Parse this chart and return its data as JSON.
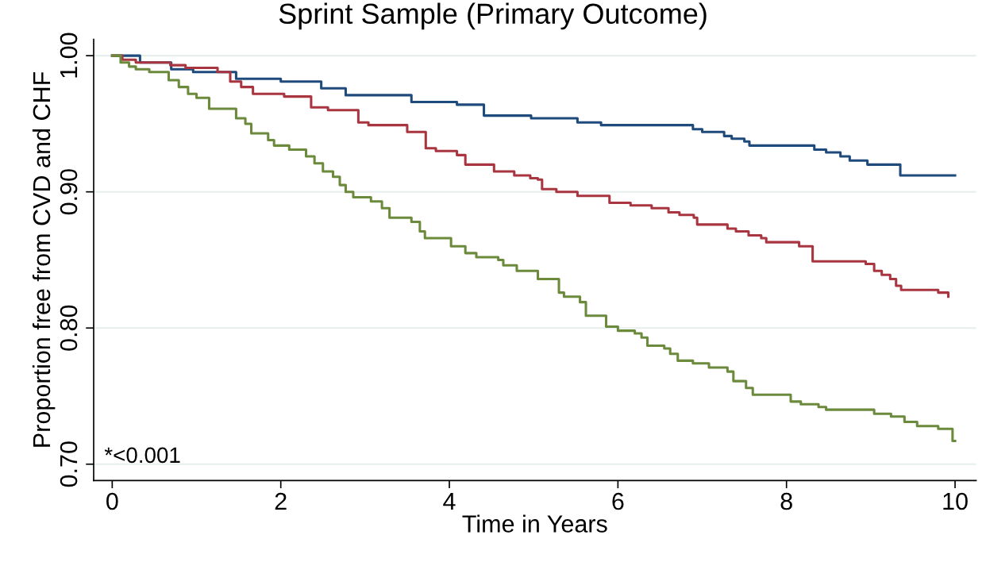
{
  "chart_data": {
    "type": "step",
    "title": "Sprint Sample (Primary Outcome)",
    "xlabel": "Time in Years",
    "ylabel": "Proportion free from CVD and CHF",
    "annotations": [
      "*<0.001"
    ],
    "series": [
      {
        "color": "#1f4a7c",
        "x": [
          0,
          0.33,
          0.7,
          0.96,
          1.47,
          2.0,
          2.48,
          2.77,
          3.55,
          4.09,
          4.41,
          4.97,
          5.52,
          5.8,
          6.89,
          7.0,
          7.26,
          7.35,
          7.5,
          7.56,
          8.33,
          8.47,
          8.64,
          8.75,
          8.96,
          9.35,
          10.0
        ],
        "values": [
          1.0,
          0.995,
          0.99,
          0.988,
          0.983,
          0.981,
          0.976,
          0.971,
          0.966,
          0.964,
          0.956,
          0.954,
          0.951,
          0.949,
          0.946,
          0.944,
          0.941,
          0.939,
          0.937,
          0.934,
          0.931,
          0.929,
          0.926,
          0.923,
          0.92,
          0.912,
          0.912
        ]
      },
      {
        "color": "#a8353f",
        "x": [
          0,
          0.12,
          0.28,
          0.69,
          0.87,
          1.25,
          1.4,
          1.53,
          1.67,
          2.04,
          2.36,
          2.56,
          2.92,
          3.04,
          3.5,
          3.72,
          3.84,
          4.09,
          4.19,
          4.53,
          4.77,
          4.96,
          5.05,
          5.1,
          5.27,
          5.52,
          5.9,
          6.15,
          6.4,
          6.6,
          6.73,
          6.9,
          6.94,
          7.3,
          7.4,
          7.55,
          7.7,
          7.76,
          8.15,
          8.31,
          8.94,
          9.04,
          9.13,
          9.23,
          9.3,
          9.36,
          9.8,
          9.92
        ],
        "values": [
          1.0,
          0.997,
          0.995,
          0.993,
          0.991,
          0.988,
          0.981,
          0.977,
          0.972,
          0.97,
          0.962,
          0.96,
          0.951,
          0.949,
          0.944,
          0.932,
          0.93,
          0.927,
          0.92,
          0.915,
          0.912,
          0.91,
          0.909,
          0.902,
          0.9,
          0.897,
          0.892,
          0.89,
          0.888,
          0.885,
          0.883,
          0.881,
          0.876,
          0.873,
          0.871,
          0.868,
          0.866,
          0.863,
          0.86,
          0.849,
          0.847,
          0.842,
          0.839,
          0.836,
          0.831,
          0.828,
          0.826,
          0.823
        ]
      },
      {
        "color": "#6b8a3c",
        "x": [
          0,
          0.1,
          0.2,
          0.28,
          0.44,
          0.67,
          0.79,
          0.9,
          1.0,
          1.15,
          1.47,
          1.58,
          1.65,
          1.85,
          1.92,
          2.1,
          2.3,
          2.4,
          2.5,
          2.62,
          2.7,
          2.77,
          2.86,
          3.07,
          3.2,
          3.29,
          3.55,
          3.65,
          3.71,
          4.02,
          4.19,
          4.32,
          4.58,
          4.64,
          4.8,
          5.05,
          5.3,
          5.36,
          5.55,
          5.62,
          5.86,
          6.0,
          6.2,
          6.28,
          6.35,
          6.55,
          6.62,
          6.71,
          6.89,
          7.08,
          7.3,
          7.37,
          7.52,
          7.6,
          8.05,
          8.17,
          8.38,
          8.47,
          9.04,
          9.24,
          9.4,
          9.55,
          9.8,
          9.97,
          10.0
        ],
        "values": [
          1.0,
          0.995,
          0.992,
          0.99,
          0.988,
          0.982,
          0.977,
          0.972,
          0.969,
          0.961,
          0.954,
          0.95,
          0.943,
          0.938,
          0.934,
          0.931,
          0.926,
          0.921,
          0.915,
          0.911,
          0.905,
          0.9,
          0.896,
          0.893,
          0.888,
          0.881,
          0.878,
          0.871,
          0.866,
          0.86,
          0.855,
          0.852,
          0.85,
          0.846,
          0.842,
          0.836,
          0.826,
          0.823,
          0.819,
          0.809,
          0.801,
          0.798,
          0.796,
          0.793,
          0.787,
          0.785,
          0.781,
          0.776,
          0.774,
          0.771,
          0.768,
          0.761,
          0.756,
          0.751,
          0.746,
          0.744,
          0.742,
          0.74,
          0.737,
          0.735,
          0.731,
          0.728,
          0.726,
          0.717,
          0.717
        ]
      }
    ],
    "xlim": [
      -0.22,
      10.25
    ],
    "ylim": [
      0.688,
      1.012
    ],
    "xticks": [
      0,
      2,
      4,
      6,
      8,
      10
    ],
    "yticks": [
      {
        "value": 0.7,
        "label": "0.70"
      },
      {
        "value": 0.8,
        "label": "0.80"
      },
      {
        "value": 0.9,
        "label": "0.90"
      },
      {
        "value": 1.0,
        "label": "1.00"
      }
    ],
    "grid": "y"
  }
}
